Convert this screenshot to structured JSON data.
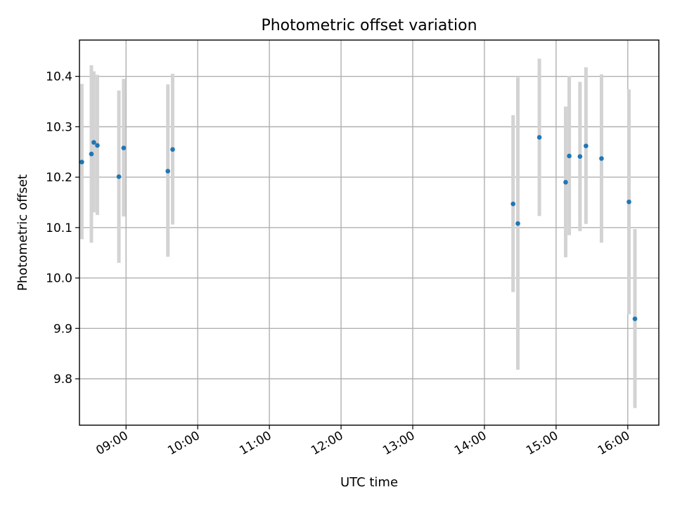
{
  "chart_data": {
    "type": "scatter",
    "title": "Photometric offset variation",
    "xlabel": "UTC time",
    "ylabel": "Photometric offset",
    "x_axis": {
      "kind": "time",
      "range": [
        "08:21",
        "16:26"
      ],
      "ticks": [
        "09:00",
        "10:00",
        "11:00",
        "12:00",
        "13:00",
        "14:00",
        "15:00",
        "16:00"
      ]
    },
    "y_axis": {
      "range": [
        9.708,
        10.472
      ],
      "ticks": [
        "9.8",
        "9.9",
        "10.0",
        "10.1",
        "10.2",
        "10.3",
        "10.4"
      ]
    },
    "grid": true,
    "marker_color": "#1f77b4",
    "errorbar_color": "#d3d3d3",
    "points": [
      {
        "x": "08:23",
        "y": 10.23,
        "ylow": 10.077,
        "yhigh": 10.385
      },
      {
        "x": "08:31",
        "y": 10.246,
        "ylow": 10.07,
        "yhigh": 10.422
      },
      {
        "x": "08:33",
        "y": 10.269,
        "ylow": 10.13,
        "yhigh": 10.41
      },
      {
        "x": "08:36",
        "y": 10.263,
        "ylow": 10.125,
        "yhigh": 10.403
      },
      {
        "x": "08:54",
        "y": 10.201,
        "ylow": 10.03,
        "yhigh": 10.372
      },
      {
        "x": "08:58",
        "y": 10.258,
        "ylow": 10.122,
        "yhigh": 10.395
      },
      {
        "x": "09:35",
        "y": 10.212,
        "ylow": 10.042,
        "yhigh": 10.384
      },
      {
        "x": "09:39",
        "y": 10.255,
        "ylow": 10.106,
        "yhigh": 10.405
      },
      {
        "x": "14:24",
        "y": 10.147,
        "ylow": 9.972,
        "yhigh": 10.323
      },
      {
        "x": "14:28",
        "y": 10.108,
        "ylow": 9.818,
        "yhigh": 10.398
      },
      {
        "x": "14:46",
        "y": 10.279,
        "ylow": 10.123,
        "yhigh": 10.435
      },
      {
        "x": "15:08",
        "y": 10.19,
        "ylow": 10.041,
        "yhigh": 10.34
      },
      {
        "x": "15:11",
        "y": 10.242,
        "ylow": 10.085,
        "yhigh": 10.401
      },
      {
        "x": "15:20",
        "y": 10.241,
        "ylow": 10.093,
        "yhigh": 10.389
      },
      {
        "x": "15:25",
        "y": 10.262,
        "ylow": 10.107,
        "yhigh": 10.418
      },
      {
        "x": "15:38",
        "y": 10.237,
        "ylow": 10.07,
        "yhigh": 10.404
      },
      {
        "x": "16:01",
        "y": 10.151,
        "ylow": 9.928,
        "yhigh": 10.374
      },
      {
        "x": "16:06",
        "y": 9.919,
        "ylow": 9.742,
        "yhigh": 10.097
      }
    ]
  }
}
